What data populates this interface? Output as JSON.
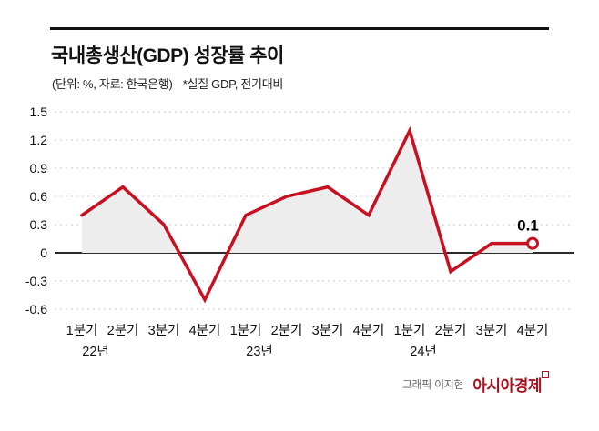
{
  "header": {
    "title": "국내총생산(GDP) 성장률 추이",
    "subtitle_source": "(단위: %, 자료: 한국은행)",
    "subtitle_note": "*실질 GDP, 전기대비"
  },
  "chart_data": {
    "type": "line",
    "title": "국내총생산(GDP) 성장률 추이",
    "unit": "%",
    "source": "한국은행",
    "categories": [
      "1분기",
      "2분기",
      "3분기",
      "4분기",
      "1분기",
      "2분기",
      "3분기",
      "4분기",
      "1분기",
      "2분기",
      "3분기",
      "4분기"
    ],
    "year_labels": [
      {
        "label": "22년",
        "index": 0
      },
      {
        "label": "23년",
        "index": 4
      },
      {
        "label": "24년",
        "index": 8
      }
    ],
    "values": [
      0.4,
      0.7,
      0.3,
      -0.5,
      0.4,
      0.6,
      0.7,
      0.4,
      1.3,
      -0.2,
      0.1,
      0.1
    ],
    "yticks": [
      1.5,
      1.2,
      0.9,
      0.6,
      0.3,
      0,
      -0.3,
      -0.6
    ],
    "ylim": [
      -0.6,
      1.5
    ],
    "last_point_label": "0.1",
    "line_color": "#c81021",
    "area_color": "#ededed",
    "zero_line_color": "#2b2b2b",
    "grid_color": "#c9c9c9",
    "legend": "none",
    "grid": "dashed-horizontal"
  },
  "footer": {
    "credit": "그래픽 이지현",
    "brand": "아시아경제"
  }
}
